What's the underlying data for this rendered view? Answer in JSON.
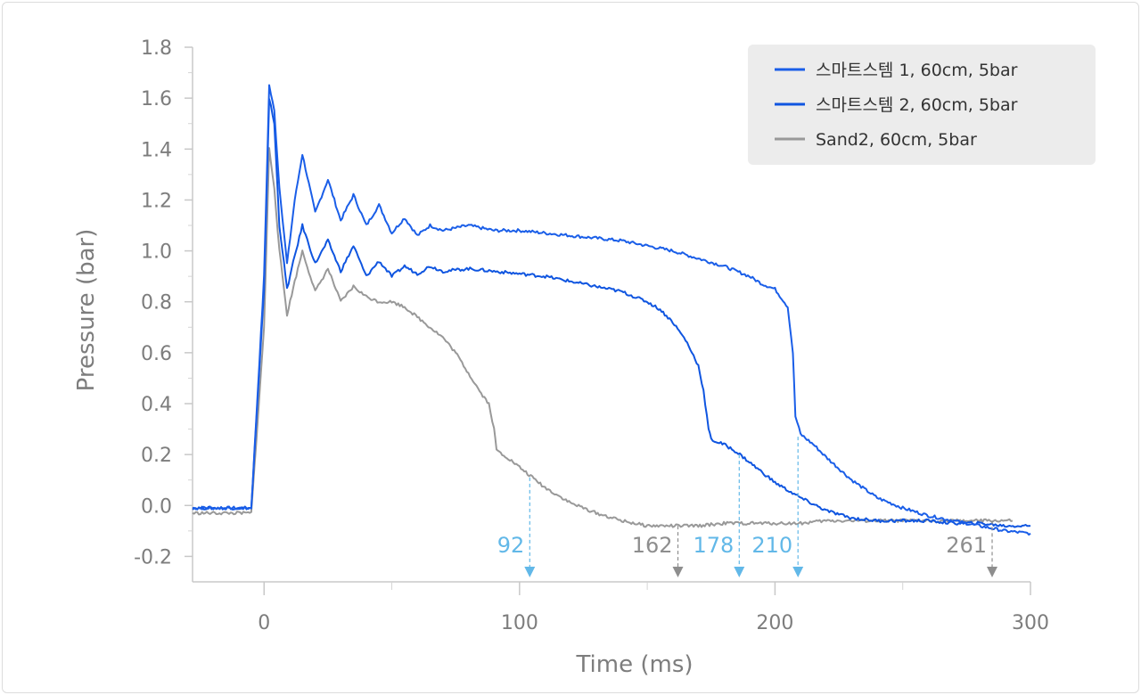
{
  "chart_data": {
    "type": "line",
    "xlabel": "Time (ms)",
    "ylabel": "Pressure (bar)",
    "xlim": [
      -28,
      300
    ],
    "ylim": [
      -0.3,
      1.8
    ],
    "xticks": [
      0,
      100,
      200,
      300
    ],
    "yticks": [
      -0.2,
      0.0,
      0.2,
      0.4,
      0.6,
      0.8,
      1.0,
      1.2,
      1.4,
      1.6,
      1.8
    ],
    "ytick_labels": [
      "-0.2",
      "0.0",
      "0.2",
      "0.4",
      "0.6",
      "0.8",
      "1.0",
      "1.2",
      "1.4",
      "1.6",
      "1.8"
    ],
    "legend_position": "top-right",
    "series": [
      {
        "name": "스마트스템 1, 60cm, 5bar",
        "color": "#1a5ee8",
        "x": [
          -28,
          -5,
          0,
          2,
          4,
          6,
          9,
          12,
          15,
          20,
          25,
          30,
          35,
          40,
          45,
          50,
          55,
          60,
          65,
          70,
          80,
          90,
          100,
          110,
          120,
          130,
          140,
          150,
          160,
          170,
          180,
          190,
          195,
          200,
          205,
          207,
          208,
          210,
          215,
          220,
          230,
          240,
          250,
          260,
          270,
          280,
          290,
          300
        ],
        "y": [
          -0.01,
          -0.01,
          0.9,
          1.65,
          1.55,
          1.25,
          0.95,
          1.2,
          1.38,
          1.15,
          1.28,
          1.12,
          1.22,
          1.1,
          1.18,
          1.07,
          1.13,
          1.06,
          1.1,
          1.08,
          1.1,
          1.08,
          1.08,
          1.07,
          1.06,
          1.05,
          1.04,
          1.02,
          1.0,
          0.97,
          0.94,
          0.9,
          0.87,
          0.85,
          0.78,
          0.6,
          0.35,
          0.28,
          0.24,
          0.19,
          0.1,
          0.03,
          -0.01,
          -0.04,
          -0.06,
          -0.08,
          -0.1,
          -0.11
        ]
      },
      {
        "name": "스마트스템 2, 60cm, 5bar",
        "color": "#0f55e0",
        "x": [
          -28,
          -5,
          0,
          2,
          4,
          6,
          9,
          12,
          15,
          20,
          25,
          30,
          35,
          40,
          45,
          50,
          55,
          60,
          65,
          70,
          80,
          90,
          100,
          110,
          120,
          130,
          140,
          150,
          155,
          160,
          165,
          170,
          172,
          174,
          175,
          177,
          180,
          185,
          190,
          200,
          210,
          220,
          230,
          240,
          250,
          260,
          270,
          280,
          290,
          300
        ],
        "y": [
          -0.01,
          -0.01,
          0.85,
          1.6,
          1.5,
          1.1,
          0.85,
          0.98,
          1.1,
          0.95,
          1.04,
          0.92,
          1.02,
          0.9,
          0.96,
          0.9,
          0.94,
          0.91,
          0.94,
          0.92,
          0.93,
          0.92,
          0.91,
          0.9,
          0.88,
          0.86,
          0.84,
          0.8,
          0.77,
          0.72,
          0.65,
          0.55,
          0.45,
          0.3,
          0.26,
          0.25,
          0.24,
          0.21,
          0.17,
          0.09,
          0.03,
          -0.02,
          -0.05,
          -0.06,
          -0.06,
          -0.06,
          -0.07,
          -0.07,
          -0.08,
          -0.08
        ]
      },
      {
        "name": "Sand2, 60cm, 5bar",
        "color": "#999999",
        "x": [
          -28,
          -5,
          0,
          2,
          4,
          6,
          9,
          12,
          15,
          20,
          25,
          30,
          35,
          40,
          45,
          50,
          55,
          60,
          65,
          70,
          75,
          80,
          85,
          88,
          90,
          91,
          92,
          95,
          100,
          110,
          120,
          130,
          140,
          150,
          160,
          170,
          180,
          190,
          200,
          210,
          220,
          230,
          240,
          250,
          260,
          270,
          280,
          293
        ],
        "y": [
          -0.03,
          -0.03,
          0.7,
          1.4,
          1.25,
          1.0,
          0.75,
          0.88,
          1.0,
          0.84,
          0.93,
          0.8,
          0.86,
          0.82,
          0.8,
          0.8,
          0.78,
          0.74,
          0.7,
          0.66,
          0.6,
          0.52,
          0.44,
          0.4,
          0.3,
          0.22,
          0.21,
          0.19,
          0.15,
          0.07,
          0.01,
          -0.03,
          -0.06,
          -0.08,
          -0.08,
          -0.08,
          -0.07,
          -0.07,
          -0.07,
          -0.07,
          -0.06,
          -0.06,
          -0.06,
          -0.06,
          -0.06,
          -0.06,
          -0.06,
          -0.06
        ]
      }
    ],
    "annotations": [
      {
        "label": "92",
        "x": 104,
        "y_top": 0.11,
        "color": "#62b8e8"
      },
      {
        "label": "162",
        "x": 162,
        "y_top": -0.08,
        "color": "#8e8e8e"
      },
      {
        "label": "178",
        "x": 186,
        "y_top": 0.2,
        "color": "#62b8e8"
      },
      {
        "label": "210",
        "x": 209,
        "y_top": 0.27,
        "color": "#62b8e8"
      },
      {
        "label": "261",
        "x": 285,
        "y_top": -0.06,
        "color": "#8e8e8e"
      }
    ]
  }
}
